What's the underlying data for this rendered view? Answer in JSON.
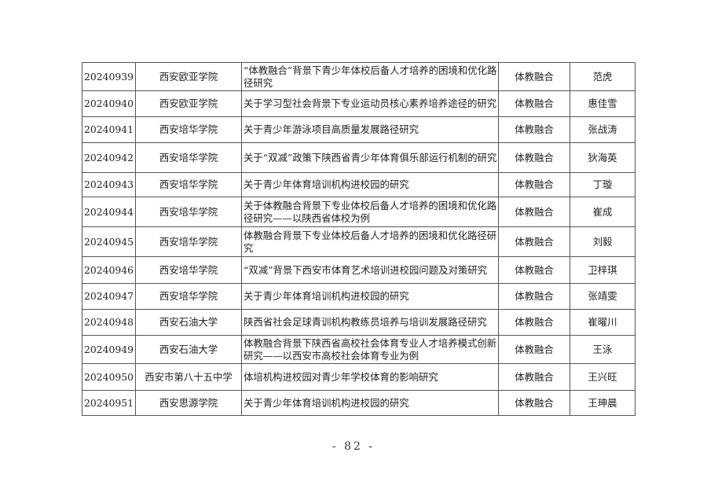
{
  "rows": [
    {
      "id": "20240939",
      "unit": "西安欧亚学院",
      "title": "“体教融合”背景下青少年体校后备人才培养的困境和优化路径研究",
      "category": "体教融合",
      "author": "范虎"
    },
    {
      "id": "20240940",
      "unit": "西安欧亚学院",
      "title": "关于学习型社会背景下专业运动员核心素养培养途径的研究",
      "category": "体教融合",
      "author": "惠佳雪"
    },
    {
      "id": "20240941",
      "unit": "西安培华学院",
      "title": "关于青少年游泳项目高质量发展路径研究",
      "category": "体教融合",
      "author": "张战涛"
    },
    {
      "id": "20240942",
      "unit": "西安培华学院",
      "title": "关于“双减”政策下陕西省青少年体育俱乐部运行机制的研究",
      "category": "体教融合",
      "author": "狄海英"
    },
    {
      "id": "20240943",
      "unit": "西安培华学院",
      "title": "关于青少年体育培训机构进校园的研究",
      "category": "体教融合",
      "author": "丁璇"
    },
    {
      "id": "20240944",
      "unit": "西安培华学院",
      "title": "关于体教融合背景下专业体校后备人才培养的困境和优化路径研究——以陕西省体校为例",
      "category": "体教融合",
      "author": "崔成"
    },
    {
      "id": "20240945",
      "unit": "西安培华学院",
      "title": "体教融合背景下专业体校后备人才培养的困境和优化路径研究",
      "category": "体教融合",
      "author": "刘毅"
    },
    {
      "id": "20240946",
      "unit": "西安培华学院",
      "title": "“双减”背景下西安市体育艺术培训进校园问题及对策研究",
      "category": "体教融合",
      "author": "卫梓琪"
    },
    {
      "id": "20240947",
      "unit": "西安培华学院",
      "title": "关于青少年体育培训机构进校园的研究",
      "category": "体教融合",
      "author": "张靖雯"
    },
    {
      "id": "20240948",
      "unit": "西安石油大学",
      "title": "陕西省社会足球青训机构教练员培养与培训发展路径研究",
      "category": "体教融合",
      "author": "崔曜川"
    },
    {
      "id": "20240949",
      "unit": "西安石油大学",
      "title": "体教融合背景下陕西省高校社会体育专业人才培养模式创新研究——以西安市高校社会体育专业为例",
      "category": "体教融合",
      "author": "王泳"
    },
    {
      "id": "20240950",
      "unit": "西安市第八十五中学",
      "title": "体培机构进校园对青少年学校体育的影响研究",
      "category": "体教融合",
      "author": "王兴旺"
    },
    {
      "id": "20240951",
      "unit": "西安思源学院",
      "title": "关于青少年体育培训机构进校园的研究",
      "category": "体教融合",
      "author": "王珅晨"
    }
  ],
  "page_number": "- 82 -"
}
